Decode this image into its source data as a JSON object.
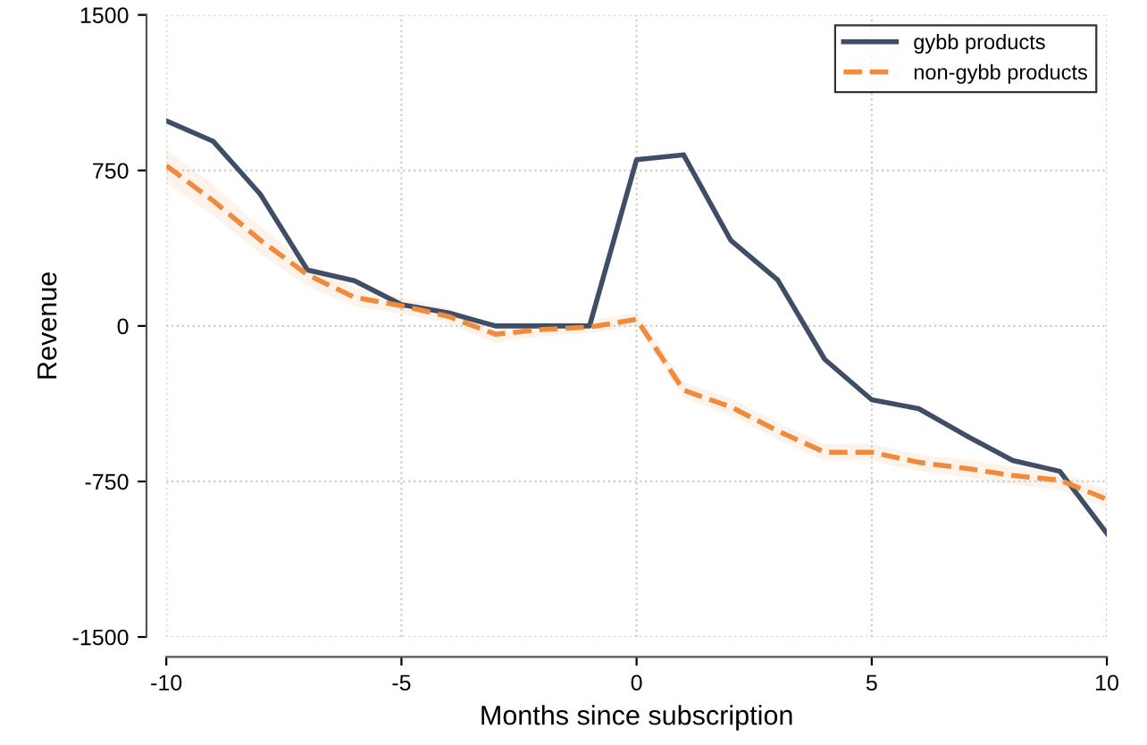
{
  "chart_data": {
    "type": "line",
    "xlabel": "Months since subscription",
    "ylabel": "Revenue",
    "x": [
      -10,
      -9,
      -8,
      -7,
      -6,
      -5,
      -4,
      -3,
      -2,
      -1,
      0,
      1,
      2,
      3,
      4,
      5,
      6,
      7,
      8,
      9,
      10
    ],
    "xlim": [
      -10,
      10
    ],
    "xticks": [
      -10,
      -5,
      0,
      5,
      10
    ],
    "ylim": [
      -1500,
      1500
    ],
    "yticks": [
      -1500,
      -750,
      0,
      750,
      1500
    ],
    "grid": true,
    "legend": "top right",
    "series": [
      {
        "name": "gybb products",
        "color": "#3e4e66",
        "line_style": "solid",
        "values": [
          989,
          890,
          635,
          270,
          218,
          103,
          63,
          0,
          0,
          0,
          802,
          825,
          414,
          222,
          -161,
          -356,
          -399,
          -528,
          -649,
          -701,
          -1000
        ]
      },
      {
        "name": "non-gybb products",
        "color": "#f08a3c",
        "line_style": "dashed",
        "values": [
          773,
          603,
          414,
          247,
          138,
          97,
          46,
          -40,
          -17,
          -6,
          32,
          -310,
          -390,
          -506,
          -609,
          -609,
          -658,
          -687,
          -721,
          -744,
          -836
        ],
        "lower": [
          690,
          530,
          350,
          190,
          95,
          60,
          10,
          -80,
          -50,
          -35,
          0,
          -350,
          -430,
          -550,
          -650,
          -650,
          -700,
          -730,
          -765,
          -790,
          -880
        ],
        "upper": [
          850,
          680,
          480,
          300,
          185,
          140,
          85,
          0,
          15,
          25,
          65,
          -270,
          -350,
          -465,
          -570,
          -570,
          -620,
          -645,
          -680,
          -700,
          -790
        ]
      }
    ]
  }
}
